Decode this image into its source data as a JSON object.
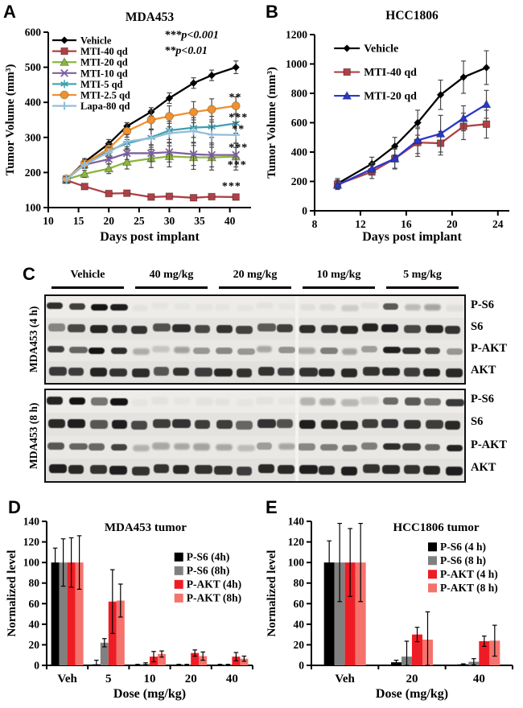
{
  "figure": {
    "panel_letters": {
      "A": "A",
      "B": "B",
      "C": "C",
      "D": "D",
      "E": "E"
    }
  },
  "chart_data": [
    {
      "id": "A",
      "type": "line",
      "title": "MDA453",
      "xlabel": "Days post implant",
      "ylabel": "Tumor Volume (mm³)",
      "xlim": [
        10,
        43.5
      ],
      "ylim": [
        100,
        600
      ],
      "xticks": [
        10,
        15,
        20,
        25,
        30,
        35,
        40
      ],
      "yticks": [
        100,
        200,
        300,
        400,
        500,
        600
      ],
      "x": [
        13,
        16,
        20,
        23,
        27,
        30,
        34,
        37,
        41
      ],
      "series": [
        {
          "name": "Vehicle",
          "color": "#000000",
          "marker": "diamond",
          "values": [
            180,
            230,
            282,
            332,
            373,
            412,
            455,
            477,
            500
          ],
          "errors": [
            8,
            10,
            12,
            10,
            12,
            15,
            15,
            15,
            18
          ]
        },
        {
          "name": "MTI-40 qd",
          "color": "#b04045",
          "marker": "square",
          "values": [
            178,
            160,
            140,
            141,
            130,
            132,
            128,
            131,
            130
          ],
          "errors": [
            6,
            7,
            6,
            6,
            5,
            5,
            5,
            5,
            6
          ]
        },
        {
          "name": "MTI-20 qd",
          "color": "#8cb53f",
          "marker": "triangle",
          "values": [
            180,
            196,
            211,
            230,
            240,
            246,
            243,
            243,
            245
          ],
          "errors": [
            8,
            10,
            14,
            20,
            26,
            30,
            34,
            36,
            38
          ]
        },
        {
          "name": "MTI-10 qd",
          "color": "#7d60a0",
          "marker": "x",
          "values": [
            181,
            222,
            238,
            255,
            255,
            258,
            252,
            250,
            250
          ],
          "errors": [
            8,
            10,
            14,
            18,
            24,
            28,
            32,
            34,
            34
          ]
        },
        {
          "name": "MTI-5 qd",
          "color": "#3f9fb0",
          "marker": "asterisk",
          "values": [
            180,
            225,
            262,
            283,
            300,
            320,
            328,
            330,
            340
          ],
          "errors": [
            8,
            10,
            14,
            18,
            22,
            26,
            28,
            30,
            28
          ]
        },
        {
          "name": "MTI-2.5 qd",
          "color": "#f0912d",
          "marker": "circle",
          "values": [
            182,
            226,
            268,
            318,
            350,
            360,
            372,
            380,
            390
          ],
          "errors": [
            8,
            10,
            15,
            24,
            28,
            30,
            30,
            30,
            26
          ]
        },
        {
          "name": "Lapa-80 qd",
          "color": "#95bdd8",
          "marker": "plus",
          "values": [
            180,
            222,
            258,
            288,
            298,
            312,
            318,
            308,
            307
          ],
          "errors": [
            8,
            10,
            14,
            20,
            26,
            28,
            32,
            36,
            36
          ]
        }
      ],
      "annotations": [
        {
          "text": "***p<0.001",
          "x": 29.2,
          "y": 583
        },
        {
          "text": "**p<0.01",
          "x": 29.2,
          "y": 538
        }
      ],
      "sig_labels": [
        {
          "text": "**",
          "x": 40.9,
          "y": 405
        },
        {
          "text": "***",
          "x": 41.4,
          "y": 348
        },
        {
          "text": "**",
          "x": 41.4,
          "y": 315
        },
        {
          "text": "***",
          "x": 41.4,
          "y": 262
        },
        {
          "text": "***",
          "x": 41.2,
          "y": 212
        },
        {
          "text": "***",
          "x": 40.3,
          "y": 152
        }
      ],
      "legend": {
        "fx": 0.02,
        "fy": 0.023
      }
    },
    {
      "id": "B",
      "type": "line",
      "title": "HCC1806",
      "xlabel": "Days post implant",
      "ylabel": "Tumor Volume (mm³)",
      "xlim": [
        8,
        25
      ],
      "ylim": [
        0,
        1200
      ],
      "xticks": [
        8,
        12,
        16,
        20,
        24
      ],
      "yticks": [
        0,
        200,
        400,
        600,
        800,
        1000,
        1200
      ],
      "x": [
        10,
        13,
        15,
        17,
        19,
        21,
        23
      ],
      "series": [
        {
          "name": "Vehicle",
          "color": "#000000",
          "marker": "diamond",
          "values": [
            185,
            320,
            440,
            600,
            790,
            910,
            975
          ],
          "errors": [
            35,
            45,
            60,
            85,
            100,
            110,
            115
          ]
        },
        {
          "name": "MTI-40 qd",
          "color": "#b04045",
          "marker": "square",
          "values": [
            180,
            265,
            355,
            465,
            460,
            575,
            590
          ],
          "errors": [
            30,
            45,
            70,
            95,
            80,
            90,
            95
          ]
        },
        {
          "name": "MTI-20 qd",
          "color": "#2a38c8",
          "marker": "triangle",
          "values": [
            175,
            285,
            355,
            480,
            525,
            630,
            725
          ],
          "errors": [
            30,
            40,
            65,
            90,
            125,
            85,
            95
          ]
        }
      ],
      "annotations": [],
      "sig_labels": [],
      "legend": {
        "fx": 0.1,
        "fy": 0.055
      }
    },
    {
      "id": "D",
      "type": "bar",
      "title": "MDA453 tumor",
      "xlabel": "Dose (mg/kg)",
      "ylabel": "Normalized level",
      "ylim": [
        0,
        140
      ],
      "yticks": [
        0,
        20,
        40,
        60,
        80,
        100,
        120,
        140
      ],
      "categories": [
        "Veh",
        "5",
        "10",
        "20",
        "40"
      ],
      "series": [
        {
          "name": "P-S6 (4h)",
          "color": "#000000",
          "values": [
            100,
            1,
            0.5,
            0.5,
            0.5
          ],
          "errors": [
            14,
            4,
            0.5,
            0.5,
            0.5
          ]
        },
        {
          "name": "P-S6 (8h)",
          "color": "#808080",
          "values": [
            100,
            22,
            1.5,
            0.5,
            0.5
          ],
          "errors": [
            23,
            4,
            1,
            0.5,
            0.5
          ]
        },
        {
          "name": "P-AKT (4h)",
          "color": "#ee1c24",
          "values": [
            100,
            62,
            8.5,
            12,
            8.5
          ],
          "errors": [
            24,
            31,
            5,
            3,
            4
          ]
        },
        {
          "name": "P-AKT (8h)",
          "color": "#f4736d",
          "values": [
            100,
            63,
            11,
            9,
            6.5
          ],
          "errors": [
            26,
            16,
            3,
            4,
            2.5
          ]
        }
      ],
      "legend": {
        "fx": 0.62,
        "fy": 0.27
      }
    },
    {
      "id": "E",
      "type": "bar",
      "title": "HCC1806 tumor",
      "xlabel": "Dose (mg/kg)",
      "ylabel": "Normalized level",
      "ylim": [
        0,
        140
      ],
      "yticks": [
        0,
        20,
        40,
        60,
        80,
        100,
        120,
        140
      ],
      "categories": [
        "Veh",
        "20",
        "40"
      ],
      "series": [
        {
          "name": "P-S6 (4 h)",
          "color": "#000000",
          "values": [
            100,
            3,
            1
          ],
          "errors": [
            21,
            2,
            0.5
          ]
        },
        {
          "name": "P-S6 (8 h)",
          "color": "#808080",
          "values": [
            100,
            8.5,
            3.5
          ],
          "errors": [
            38,
            15,
            3
          ]
        },
        {
          "name": "P-AKT (4 h)",
          "color": "#ee1c24",
          "values": [
            100,
            30,
            23.5
          ],
          "errors": [
            33,
            7,
            5
          ]
        },
        {
          "name": "P-AKT (8 h)",
          "color": "#f4736d",
          "values": [
            100,
            25,
            24
          ],
          "errors": [
            38,
            27,
            15
          ]
        }
      ],
      "legend": {
        "fx": 0.58,
        "fy": 0.2
      }
    }
  ],
  "blots": {
    "panel": "C",
    "group_headers": [
      "Vehicle",
      "40 mg/kg",
      "20 mg/kg",
      "10 mg/kg",
      "5 mg/kg"
    ],
    "lanes_per_group": 4,
    "sections": [
      {
        "side_label": "MDA453 (4 h)",
        "rows": [
          {
            "label": "P-S6",
            "intensities": [
              0.88,
              0.8,
              1,
              0.95,
              0.04,
              0.03,
              0.03,
              0.03,
              0.03,
              0.03,
              0.04,
              0.03,
              0.06,
              0.08,
              0.14,
              0.05,
              0.68,
              0.22,
              0.32,
              0.06
            ]
          },
          {
            "label": "S6",
            "intensities": [
              0.45,
              0.75,
              0.92,
              0.85,
              0.85,
              0.7,
              0.88,
              0.75,
              0.85,
              0.78,
              0.65,
              0.8,
              0.88,
              0.85,
              0.9,
              0.92,
              0.95,
              0.75,
              0.9,
              0.85
            ]
          },
          {
            "label": "P-AKT",
            "intensities": [
              0.8,
              0.62,
              1,
              0.88,
              0.28,
              0.16,
              0.33,
              0.38,
              0.45,
              0.38,
              0.3,
              0.4,
              0.3,
              0.5,
              0.32,
              0.35,
              0.95,
              0.85,
              0.75,
              0.38
            ]
          },
          {
            "label": "AKT",
            "intensities": [
              0.82,
              0.8,
              0.92,
              0.85,
              0.88,
              0.68,
              0.85,
              0.8,
              0.9,
              0.85,
              0.85,
              0.8,
              0.85,
              0.9,
              0.9,
              0.85,
              0.9,
              0.8,
              0.92,
              0.9
            ]
          }
        ]
      },
      {
        "side_label": "MDA453 (8 h)",
        "rows": [
          {
            "label": "P-S6",
            "intensities": [
              0.92,
              1,
              0.55,
              1,
              0.03,
              0.04,
              0.03,
              0.04,
              0.04,
              0.03,
              0.04,
              0.03,
              0.26,
              0.3,
              0.24,
              0.12,
              0.6,
              0.68,
              0.55,
              0.82
            ]
          },
          {
            "label": "S6",
            "intensities": [
              0.9,
              0.95,
              0.68,
              0.95,
              0.75,
              0.8,
              0.85,
              0.8,
              0.8,
              0.6,
              0.85,
              0.7,
              0.95,
              0.9,
              0.88,
              0.8,
              0.85,
              0.85,
              0.8,
              0.9
            ]
          },
          {
            "label": "P-AKT",
            "intensities": [
              0.68,
              0.62,
              0.6,
              0.78,
              0.25,
              0.3,
              0.3,
              0.32,
              0.3,
              0.2,
              0.35,
              0.3,
              0.45,
              0.5,
              0.55,
              0.5,
              0.88,
              0.8,
              0.6,
              0.92
            ]
          },
          {
            "label": "AKT",
            "intensities": [
              0.95,
              0.9,
              0.85,
              0.95,
              0.85,
              0.85,
              0.9,
              0.85,
              0.85,
              0.8,
              0.9,
              0.9,
              0.95,
              0.9,
              0.95,
              0.85,
              0.9,
              0.85,
              0.9,
              0.95
            ]
          }
        ]
      }
    ]
  }
}
